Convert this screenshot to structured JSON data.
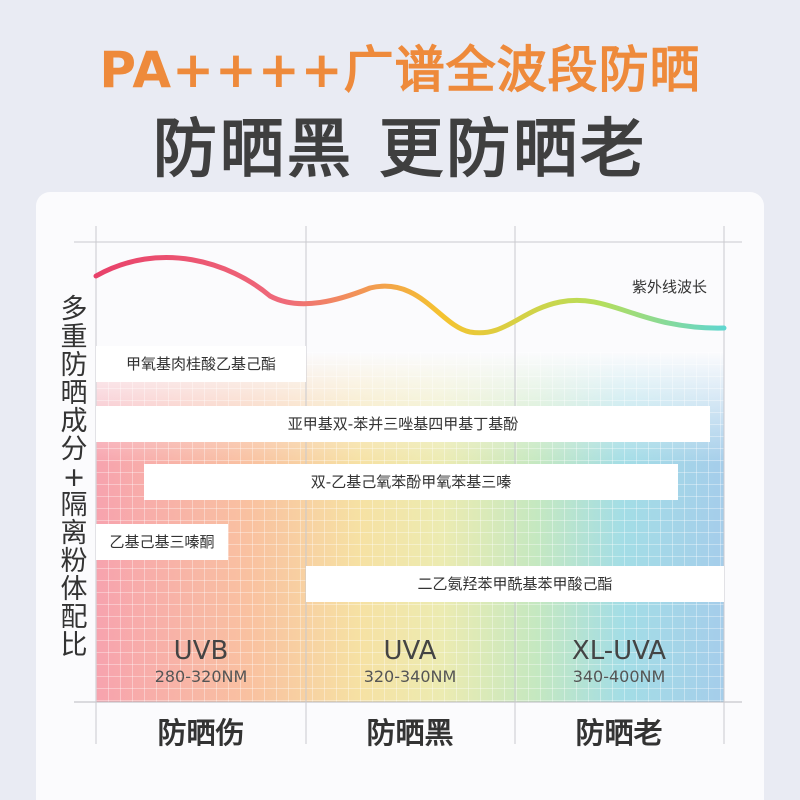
{
  "header": {
    "title_main": "PA++++广谱全波段防晒",
    "title_sub": "防晒黑 更防晒老"
  },
  "chart": {
    "y_label": [
      "多",
      "重",
      "防",
      "晒",
      "成",
      "分",
      "+",
      "隔",
      "离",
      "粉",
      "体",
      "配",
      "比"
    ],
    "wave_label": "紫外线波长",
    "ingredients": [
      "甲氧基肉桂酸乙基己酯",
      "亚甲基双-苯并三唑基四甲基丁基酚",
      "双-乙基己氧苯酚甲氧苯基三嗪",
      "乙基己基三嗪酮",
      "二乙氨羟苯甲酰基苯甲酸己酯"
    ],
    "bands": [
      {
        "name": "UVB",
        "range": "280-320NM",
        "effect": "防晒伤"
      },
      {
        "name": "UVA",
        "range": "320-340NM",
        "effect": "防晒黑"
      },
      {
        "name": "XL-UVA",
        "range": "340-400NM",
        "effect": "防晒老"
      }
    ],
    "colors": {
      "title_orange": "#ee8a3b",
      "wave_start": "#e8416a",
      "wave_mid": "#f5c330",
      "wave_end": "#5fd6cf"
    }
  }
}
